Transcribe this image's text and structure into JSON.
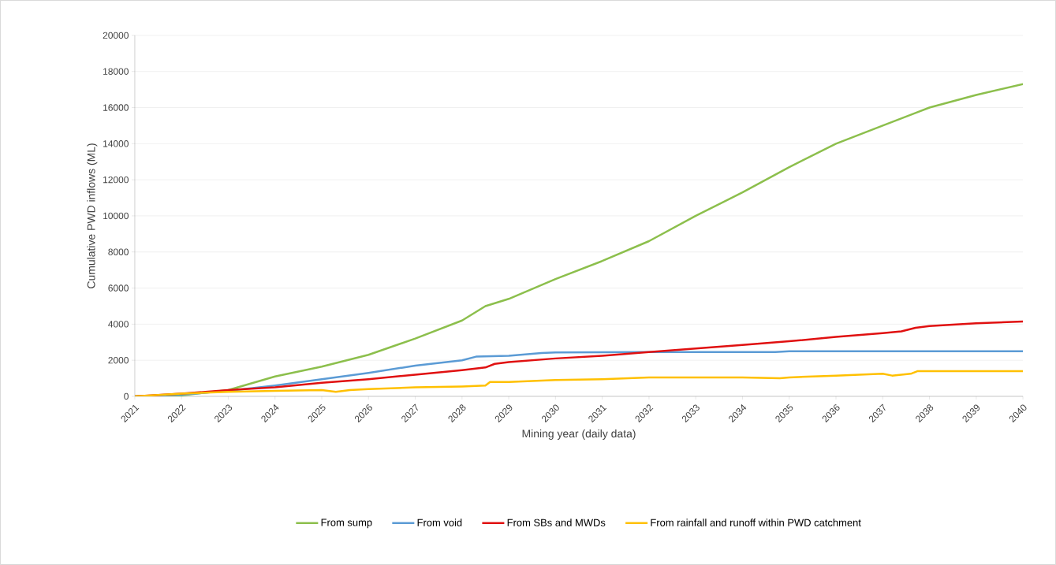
{
  "chart_data": {
    "type": "line",
    "xlabel": "Mining year (daily data)",
    "ylabel": "Cumulative PWD inflows (ML)",
    "xlim": [
      2021,
      2040
    ],
    "xticks": [
      2021,
      2022,
      2023,
      2024,
      2025,
      2026,
      2027,
      2028,
      2029,
      2030,
      2031,
      2032,
      2033,
      2034,
      2035,
      2036,
      2037,
      2038,
      2039,
      2040
    ],
    "ylim": [
      0,
      20000
    ],
    "yticks": [
      0,
      2000,
      4000,
      6000,
      8000,
      10000,
      12000,
      14000,
      16000,
      18000,
      20000
    ],
    "grid": "y",
    "legend": "bottom",
    "marker": "none",
    "line_style": "solid",
    "series": [
      {
        "name": "From sump",
        "color": "#8cbf4c",
        "x": [
          2021,
          2022,
          2023,
          2024,
          2025,
          2026,
          2027,
          2028,
          2028.5,
          2029,
          2030,
          2031,
          2032,
          2033,
          2034,
          2035,
          2036,
          2037,
          2037.7,
          2038,
          2039,
          2040
        ],
        "values": [
          0,
          50,
          350,
          1100,
          1650,
          2300,
          3200,
          4200,
          5000,
          5400,
          6500,
          7500,
          8600,
          10000,
          11300,
          12700,
          14000,
          15000,
          15700,
          16000,
          16700,
          17300
        ]
      },
      {
        "name": "From void",
        "color": "#5b9bd5",
        "x": [
          2021,
          2022,
          2023,
          2024,
          2025,
          2026,
          2027,
          2028,
          2028.3,
          2029,
          2029.7,
          2030,
          2032,
          2034.7,
          2035,
          2040
        ],
        "values": [
          0,
          100,
          300,
          600,
          950,
          1300,
          1700,
          2000,
          2200,
          2250,
          2400,
          2430,
          2450,
          2450,
          2500,
          2500
        ]
      },
      {
        "name": "From SBs and MWDs",
        "color": "#e01010",
        "x": [
          2021,
          2022,
          2023,
          2024,
          2025,
          2026,
          2027,
          2028,
          2028.5,
          2028.7,
          2029,
          2030,
          2031,
          2032,
          2033,
          2034,
          2035,
          2036,
          2037,
          2037.4,
          2037.7,
          2038,
          2039,
          2040
        ],
        "values": [
          0,
          150,
          350,
          500,
          750,
          950,
          1200,
          1450,
          1600,
          1800,
          1900,
          2100,
          2250,
          2450,
          2650,
          2850,
          3050,
          3300,
          3500,
          3600,
          3800,
          3900,
          4050,
          4150
        ]
      },
      {
        "name": "From rainfall and runoff within PWD catchment",
        "color": "#ffc000",
        "x": [
          2021,
          2022,
          2023,
          2024,
          2025,
          2025.3,
          2025.6,
          2026,
          2027,
          2028,
          2028.5,
          2028.6,
          2029,
          2030,
          2031,
          2032,
          2033,
          2034,
          2034.8,
          2035,
          2036,
          2037,
          2037.2,
          2037.6,
          2037.75,
          2038,
          2040
        ],
        "values": [
          0,
          150,
          250,
          300,
          350,
          250,
          350,
          400,
          500,
          550,
          600,
          800,
          800,
          900,
          950,
          1050,
          1050,
          1050,
          1000,
          1050,
          1150,
          1250,
          1150,
          1250,
          1400,
          1400,
          1400
        ]
      }
    ]
  }
}
